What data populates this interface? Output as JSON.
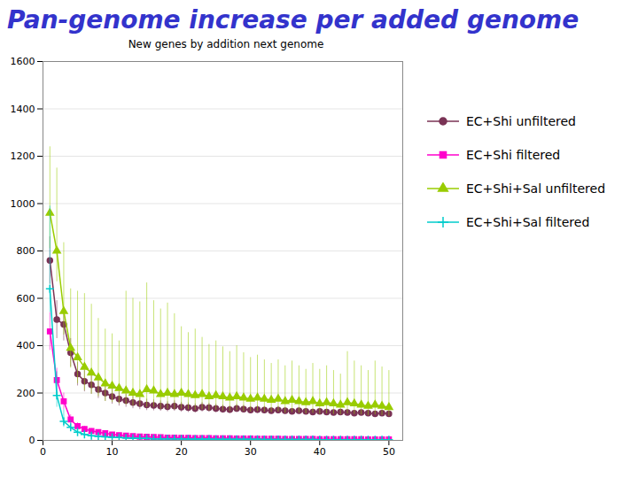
{
  "chart_data": {
    "type": "line",
    "title": "Pan-genome increase per added genome",
    "subtitle": "New genes by addition next genome",
    "x": [
      1,
      2,
      3,
      4,
      5,
      6,
      7,
      8,
      9,
      10,
      11,
      12,
      13,
      14,
      15,
      16,
      17,
      18,
      19,
      20,
      21,
      22,
      23,
      24,
      25,
      26,
      27,
      28,
      29,
      30,
      31,
      32,
      33,
      34,
      35,
      36,
      37,
      38,
      39,
      40,
      41,
      42,
      43,
      44,
      45,
      46,
      47,
      48,
      49,
      50
    ],
    "xlim": [
      0,
      52
    ],
    "ylim": [
      0,
      1600
    ],
    "xticks": [
      0,
      10,
      20,
      30,
      40,
      50
    ],
    "yticks": [
      0,
      200,
      400,
      600,
      800,
      1000,
      1200,
      1400,
      1600
    ],
    "grid": "y",
    "legend": "right",
    "series": [
      {
        "name": "EC+Shi unfiltered",
        "color": "#7a3355",
        "marker": "circle",
        "line_style": "solid",
        "values": [
          760,
          510,
          490,
          370,
          280,
          250,
          235,
          215,
          200,
          185,
          175,
          168,
          160,
          155,
          150,
          148,
          145,
          142,
          145,
          140,
          138,
          135,
          140,
          138,
          135,
          132,
          130,
          135,
          132,
          128,
          130,
          128,
          125,
          128,
          125,
          122,
          125,
          122,
          120,
          122,
          120,
          118,
          120,
          118,
          115,
          118,
          115,
          112,
          115,
          112
        ],
        "err_low": [
          100,
          80,
          70,
          60,
          50,
          45,
          40,
          38,
          35,
          32,
          30,
          28,
          26,
          25,
          24,
          23,
          22,
          21,
          22,
          21,
          20,
          19,
          20,
          19,
          18,
          17,
          16,
          17,
          16,
          15,
          16,
          15,
          14,
          15,
          14,
          13,
          14,
          13,
          12,
          13,
          12,
          11,
          12,
          11,
          10,
          11,
          10,
          9,
          10,
          9
        ],
        "err_high": [
          100,
          80,
          70,
          60,
          50,
          45,
          40,
          38,
          35,
          32,
          30,
          28,
          26,
          25,
          24,
          23,
          22,
          21,
          22,
          21,
          20,
          19,
          20,
          19,
          18,
          17,
          16,
          17,
          16,
          15,
          16,
          15,
          14,
          15,
          14,
          13,
          14,
          13,
          12,
          13,
          12,
          11,
          12,
          11,
          10,
          11,
          10,
          9,
          10,
          9
        ]
      },
      {
        "name": "EC+Shi filtered",
        "color": "#ff00cc",
        "marker": "square",
        "line_style": "solid",
        "values": [
          460,
          255,
          165,
          88,
          60,
          48,
          40,
          35,
          30,
          25,
          22,
          20,
          18,
          16,
          15,
          14,
          13,
          12,
          12,
          11,
          11,
          10,
          10,
          10,
          9,
          9,
          9,
          8,
          8,
          8,
          7,
          7,
          7,
          7,
          6,
          6,
          6,
          6,
          6,
          5,
          5,
          5,
          5,
          5,
          5,
          5,
          4,
          4,
          4,
          4
        ],
        "err_low": [
          80,
          50,
          35,
          20,
          15,
          12,
          10,
          9,
          8,
          7,
          6,
          5,
          5,
          4,
          4,
          3,
          3,
          3,
          3,
          3,
          2,
          2,
          2,
          2,
          2,
          2,
          2,
          2,
          2,
          2,
          2,
          2,
          1,
          1,
          1,
          1,
          1,
          1,
          1,
          1,
          1,
          1,
          1,
          1,
          1,
          1,
          1,
          1,
          1,
          1
        ],
        "err_high": [
          80,
          50,
          35,
          20,
          15,
          12,
          10,
          9,
          8,
          7,
          6,
          5,
          5,
          4,
          4,
          3,
          3,
          3,
          3,
          3,
          2,
          2,
          2,
          2,
          2,
          2,
          2,
          2,
          2,
          2,
          2,
          2,
          1,
          1,
          1,
          1,
          1,
          1,
          1,
          1,
          1,
          1,
          1,
          1,
          1,
          1,
          1,
          1,
          1,
          1
        ]
      },
      {
        "name": "EC+Shi+Sal unfiltered",
        "color": "#99cc00",
        "marker": "triangle",
        "line_style": "solid",
        "values": [
          960,
          800,
          545,
          390,
          350,
          310,
          285,
          265,
          240,
          230,
          220,
          210,
          200,
          195,
          215,
          210,
          195,
          200,
          195,
          200,
          195,
          190,
          195,
          185,
          190,
          185,
          180,
          185,
          180,
          175,
          180,
          175,
          170,
          175,
          165,
          170,
          165,
          160,
          165,
          155,
          160,
          155,
          150,
          160,
          155,
          150,
          145,
          150,
          145,
          140
        ],
        "err_low": [
          150,
          130,
          100,
          85,
          110,
          100,
          90,
          80,
          75,
          70,
          65,
          60,
          55,
          52,
          75,
          70,
          65,
          68,
          65,
          68,
          65,
          62,
          65,
          60,
          62,
          60,
          58,
          60,
          58,
          55,
          58,
          55,
          52,
          55,
          50,
          52,
          50,
          48,
          50,
          45,
          48,
          45,
          42,
          48,
          45,
          42,
          40,
          42,
          40,
          38
        ],
        "err_high": [
          280,
          350,
          290,
          250,
          280,
          310,
          290,
          250,
          230,
          220,
          200,
          420,
          400,
          390,
          450,
          380,
          360,
          380,
          340,
          280,
          260,
          280,
          240,
          220,
          230,
          210,
          195,
          215,
          190,
          175,
          180,
          165,
          155,
          165,
          150,
          165,
          150,
          140,
          160,
          145,
          155,
          140,
          130,
          215,
          180,
          165,
          150,
          185,
          165,
          155
        ]
      },
      {
        "name": "EC+Shi+Sal filtered",
        "color": "#00cccc",
        "marker": "plus",
        "line_style": "solid",
        "values": [
          640,
          190,
          80,
          55,
          35,
          25,
          20,
          17,
          15,
          13,
          12,
          10,
          9,
          8,
          8,
          7,
          7,
          7,
          7,
          7,
          6,
          6,
          6,
          6,
          5,
          5,
          5,
          5,
          5,
          5,
          5,
          4,
          4,
          4,
          4,
          4,
          4,
          4,
          4,
          3,
          3,
          3,
          3,
          3,
          3,
          3,
          3,
          3,
          3,
          3
        ],
        "err_low": [
          100,
          50,
          25,
          15,
          10,
          8,
          6,
          5,
          4,
          4,
          3,
          3,
          2,
          2,
          2,
          2,
          2,
          2,
          2,
          2,
          2,
          2,
          2,
          2,
          2,
          2,
          2,
          2,
          2,
          2,
          2,
          1,
          1,
          1,
          1,
          1,
          1,
          1,
          1,
          1,
          1,
          1,
          1,
          1,
          1,
          1,
          1,
          1,
          1,
          1
        ],
        "err_high": [
          350,
          100,
          50,
          30,
          20,
          15,
          12,
          10,
          8,
          7,
          6,
          5,
          5,
          4,
          4,
          4,
          4,
          4,
          4,
          4,
          3,
          3,
          3,
          3,
          3,
          3,
          3,
          3,
          3,
          3,
          3,
          2,
          2,
          2,
          2,
          2,
          2,
          2,
          2,
          2,
          2,
          2,
          2,
          2,
          2,
          2,
          2,
          2,
          2,
          2
        ]
      }
    ]
  }
}
